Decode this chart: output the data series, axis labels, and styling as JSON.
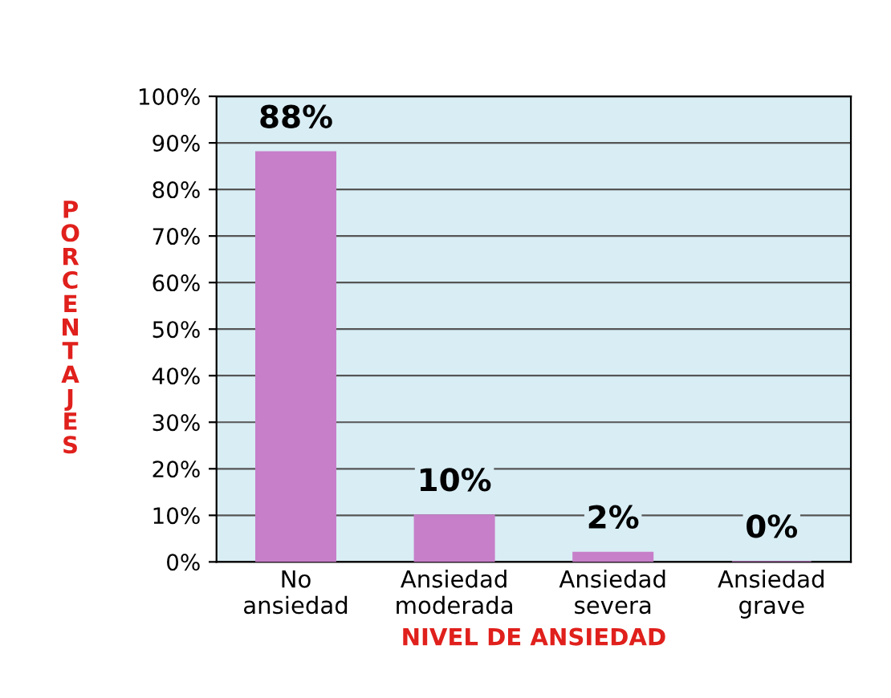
{
  "chart_data": {
    "type": "bar",
    "xlabel": "NIVEL DE ANSIEDAD",
    "ylabel": "PORCENTAJES",
    "categories": [
      "No\nansiedad",
      "Ansiedad\nmoderada",
      "Ansiedad\nsevera",
      "Ansiedad\ngrave"
    ],
    "values": [
      88,
      10,
      2,
      0
    ],
    "color": "#c77fc9",
    "value_labels": [
      "88%",
      "10%",
      "2%",
      "0%"
    ],
    "ylim": [
      0,
      100
    ],
    "yticks": [
      {
        "value": 0,
        "label": "0%"
      },
      {
        "value": 10,
        "label": "10%"
      },
      {
        "value": 20,
        "label": "20%"
      },
      {
        "value": 30,
        "label": "30%"
      },
      {
        "value": 40,
        "label": "40%"
      },
      {
        "value": 50,
        "label": "50%"
      },
      {
        "value": 60,
        "label": "60%"
      },
      {
        "value": 70,
        "label": "70%"
      },
      {
        "value": 80,
        "label": "80%"
      },
      {
        "value": 90,
        "label": "90%"
      },
      {
        "value": 100,
        "label": "100%"
      }
    ],
    "grid": "y",
    "legend": false
  }
}
